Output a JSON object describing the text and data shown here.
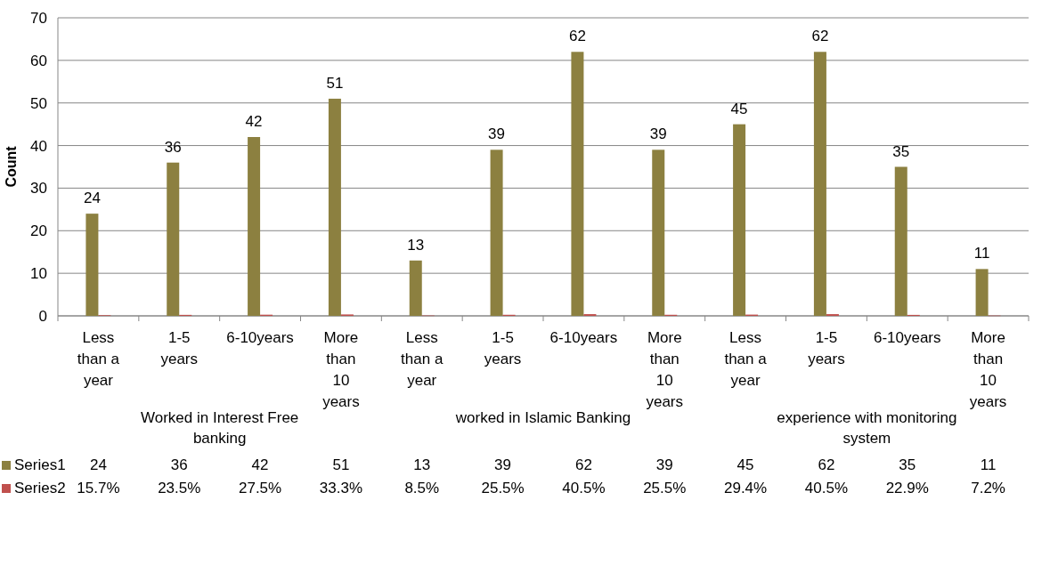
{
  "chart_data": {
    "type": "bar",
    "ylabel": "Count",
    "categories": [
      "Less than a year",
      "1-5 years",
      "6-10years",
      "More than 10 years",
      "Less than a year",
      "1-5 years",
      "6-10years",
      "More than 10 years",
      "Less than a year",
      "1-5 years",
      "6-10years",
      "More than 10 years"
    ],
    "series": [
      {
        "name": "Series1",
        "color": "#8c8040",
        "values": [
          24,
          36,
          42,
          51,
          13,
          39,
          62,
          39,
          45,
          62,
          35,
          11
        ],
        "value_labels": [
          "24",
          "36",
          "42",
          "51",
          "13",
          "39",
          "62",
          "39",
          "45",
          "62",
          "35",
          "11"
        ]
      },
      {
        "name": "Series2",
        "color": "#c0504d",
        "values": [
          0.157,
          0.235,
          0.275,
          0.333,
          0.085,
          0.255,
          0.405,
          0.255,
          0.294,
          0.405,
          0.229,
          0.072
        ],
        "value_labels": [
          "15.7%",
          "23.5%",
          "27.5%",
          "33.3%",
          "8.5%",
          "25.5%",
          "40.5%",
          "25.5%",
          "29.4%",
          "40.5%",
          "22.9%",
          "7.2%"
        ]
      }
    ],
    "annotations": [
      "Worked in Interest Free banking",
      "worked in Islamic Banking",
      "experience with monitoring system"
    ],
    "ylim": [
      0,
      70
    ],
    "yticks": [
      0,
      10,
      20,
      30,
      40,
      50,
      60,
      70
    ],
    "grid": "y",
    "legend": "bottom"
  }
}
